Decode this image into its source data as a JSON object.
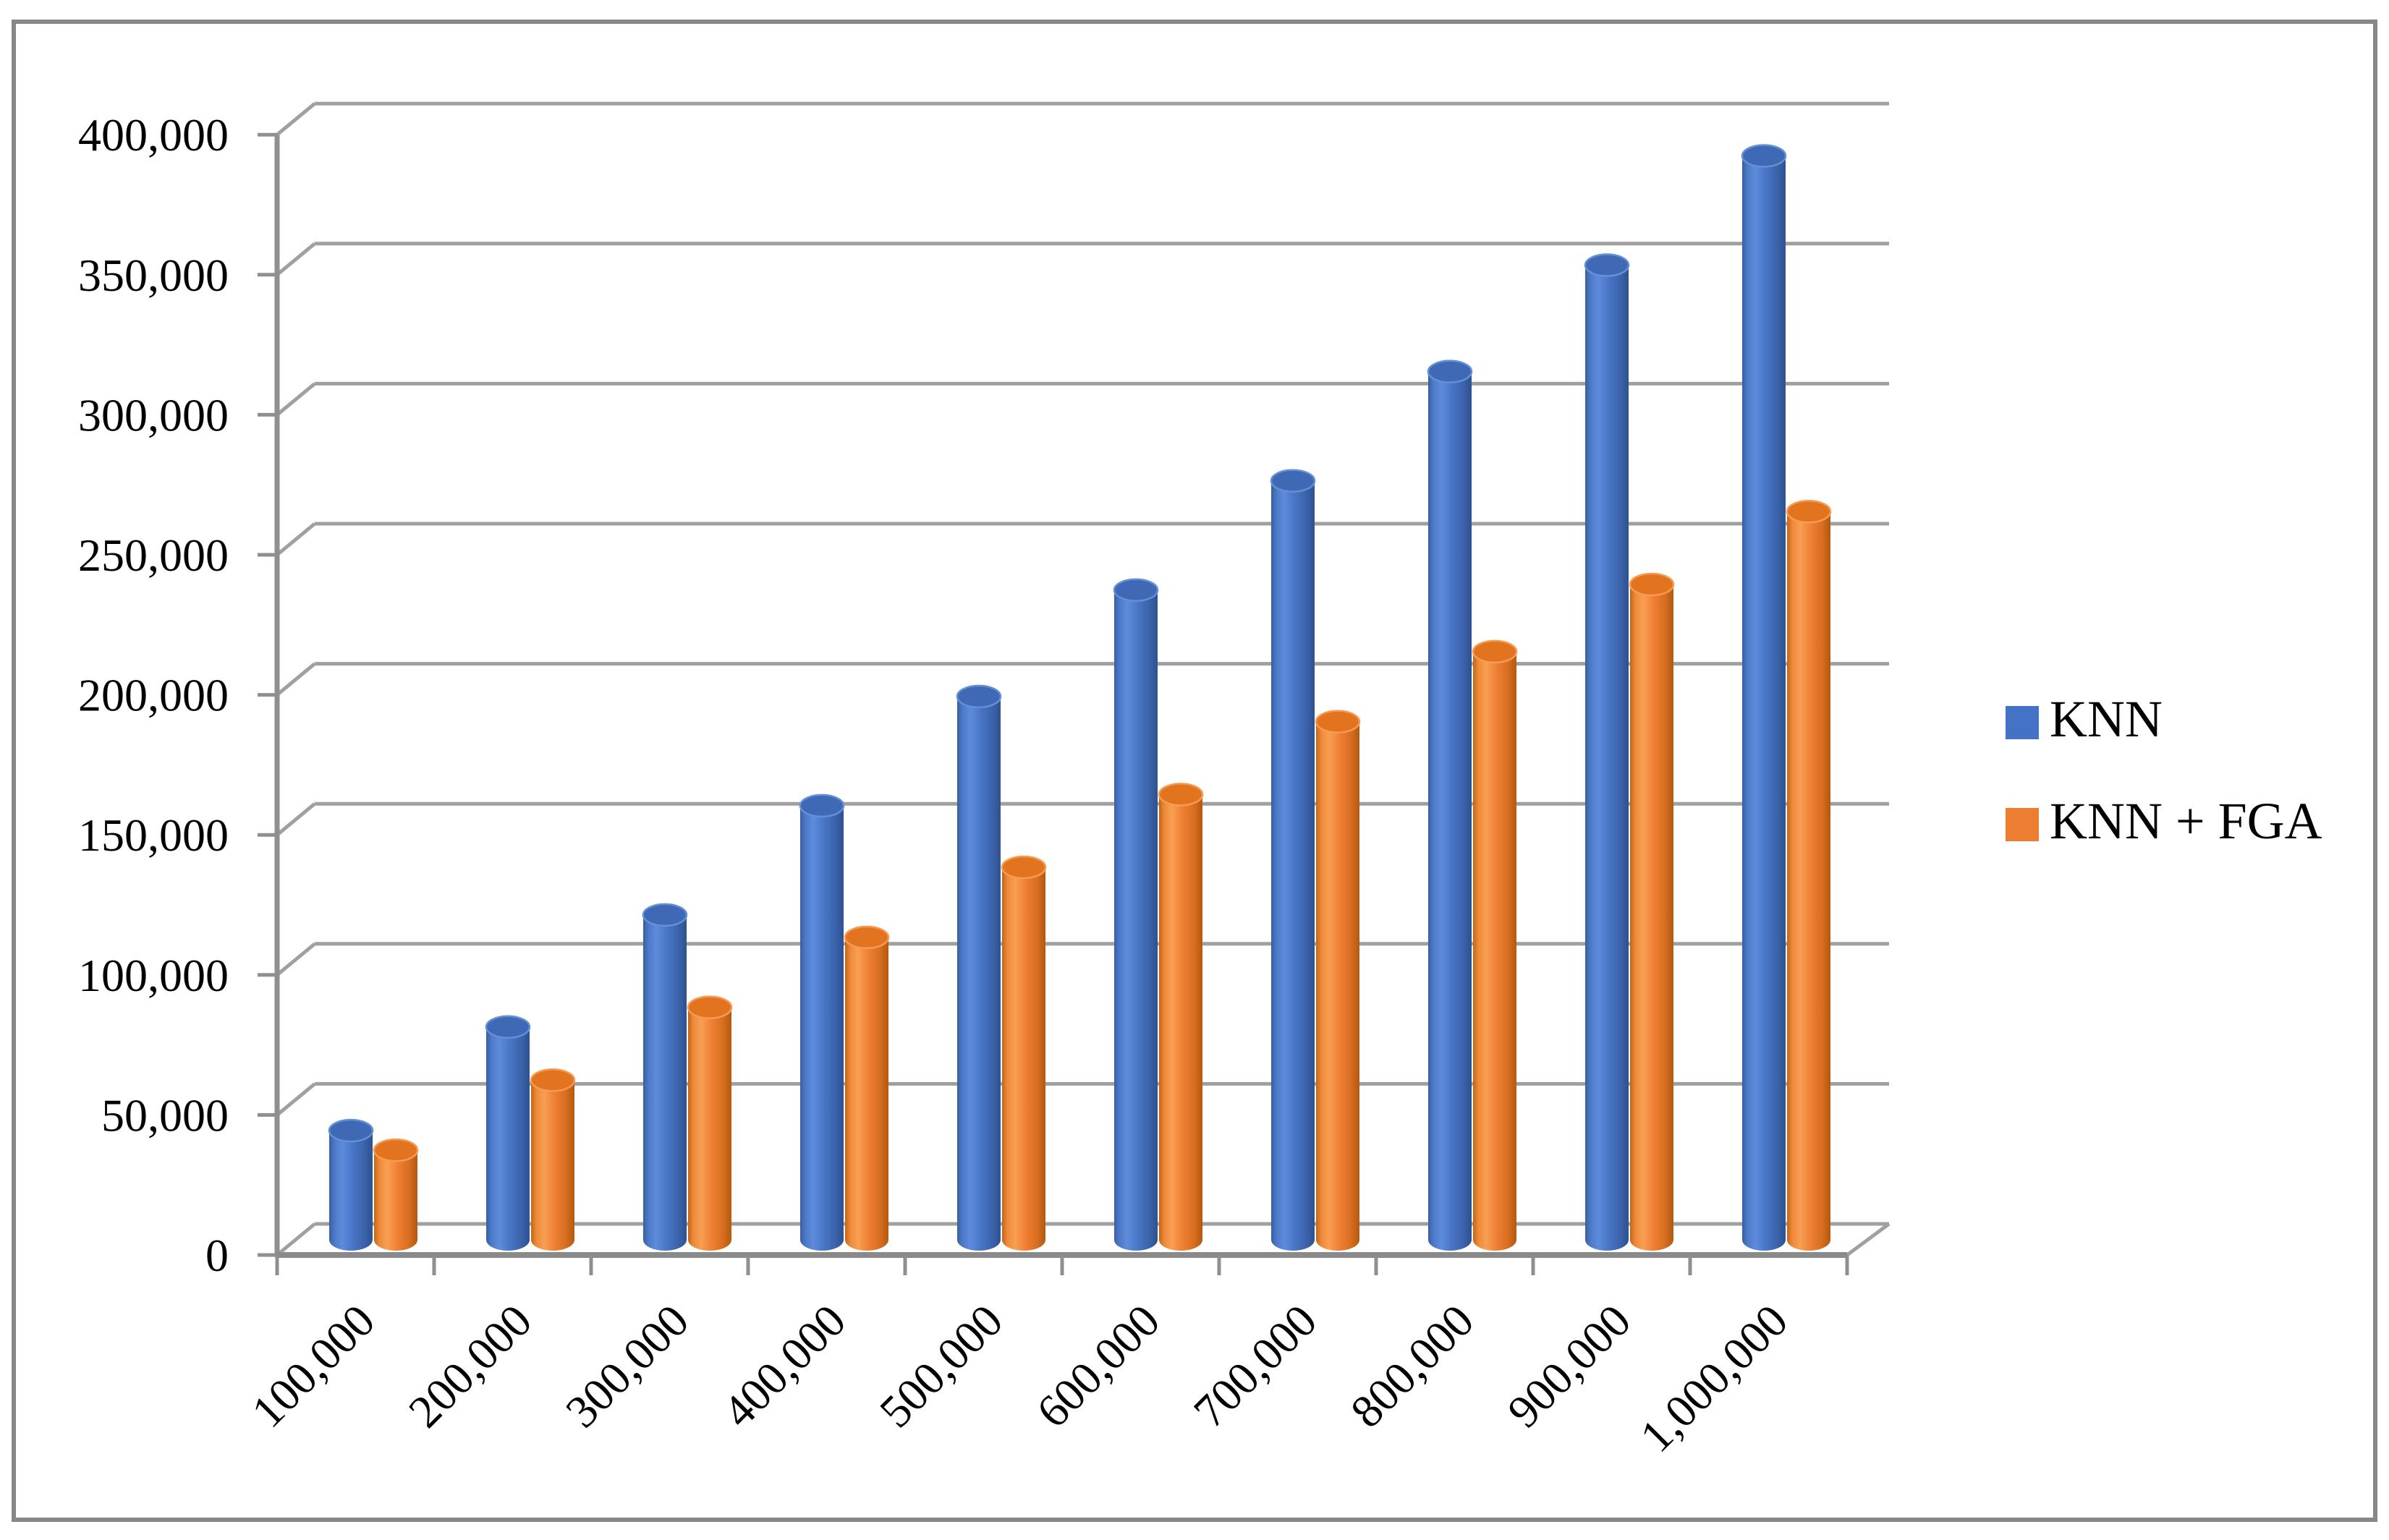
{
  "chart_data": {
    "type": "bar",
    "variant": "3d-cylinder",
    "title": "",
    "xlabel": "",
    "ylabel": "",
    "categories": [
      "100,000",
      "200,000",
      "300,000",
      "400,000",
      "500,000",
      "600,000",
      "700,000",
      "800,000",
      "900,000",
      "1,000,000"
    ],
    "series": [
      {
        "name": "KNN",
        "color": "#4472C4",
        "values": [
          39000,
          76000,
          116000,
          155000,
          194000,
          232000,
          271000,
          310000,
          348000,
          387000
        ]
      },
      {
        "name": "KNN + FGA",
        "color": "#ED7D31",
        "values": [
          32000,
          57000,
          83000,
          108000,
          133000,
          159000,
          185000,
          210000,
          234000,
          260000
        ]
      }
    ],
    "y_axis": {
      "min": 0,
      "max": 400000,
      "step": 50000,
      "tick_labels": [
        "0",
        "50,000",
        "100,000",
        "150,000",
        "200,000",
        "250,000",
        "300,000",
        "350,000",
        "400,000"
      ]
    },
    "legend": {
      "position": "right",
      "entries": [
        "KNN",
        "KNN + FGA"
      ]
    },
    "grid": true,
    "colors": {
      "grid_line": "#A0A0A0",
      "axis_line": "#8F8F8F",
      "outer_border": "#878787",
      "text": "#000000"
    }
  }
}
